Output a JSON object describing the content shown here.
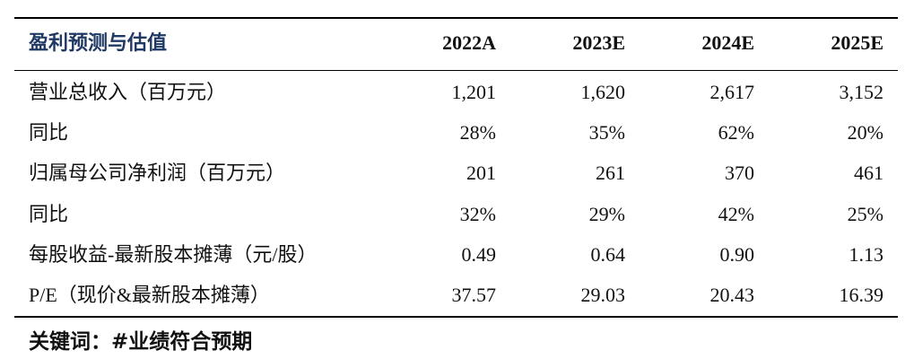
{
  "table": {
    "title": "盈利预测与估值",
    "columns": [
      "2022A",
      "2023E",
      "2024E",
      "2025E"
    ],
    "rows": [
      [
        "营业总收入（百万元）",
        "1,201",
        "1,620",
        "2,617",
        "3,152"
      ],
      [
        "同比",
        "28%",
        "35%",
        "62%",
        "20%"
      ],
      [
        "归属母公司净利润（百万元）",
        "201",
        "261",
        "370",
        "461"
      ],
      [
        "同比",
        "32%",
        "29%",
        "42%",
        "25%"
      ],
      [
        "每股收益-最新股本摊薄（元/股）",
        "0.49",
        "0.64",
        "0.90",
        "1.13"
      ],
      [
        "P/E（现价&最新股本摊薄）",
        "37.57",
        "29.03",
        "20.43",
        "16.39"
      ]
    ]
  },
  "footer": {
    "keywords": "关键词：#业绩符合预期"
  }
}
